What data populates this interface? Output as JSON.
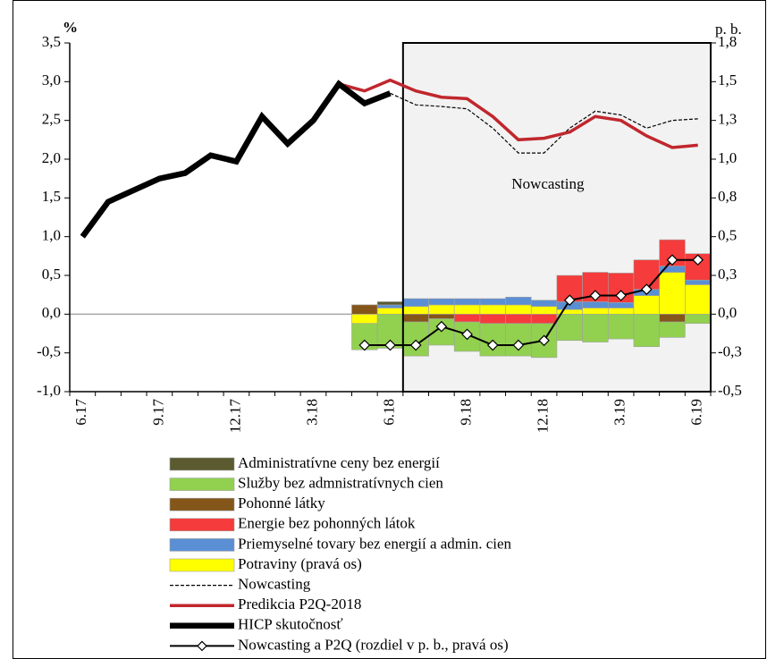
{
  "chart_data": {
    "type": "combo",
    "ylabel": "%",
    "y2label": "p. b.",
    "annotation": "Nowcasting",
    "categories": [
      "6.17",
      null,
      null,
      "9.17",
      null,
      null,
      "12.17",
      null,
      null,
      "3.18",
      null,
      null,
      "6.18",
      null,
      null,
      "9.18",
      null,
      null,
      "12.18",
      null,
      null,
      "3.19",
      null,
      null,
      "6.19"
    ],
    "ylim": [
      -1.0,
      3.5
    ],
    "yticks": [
      {
        "value": 3.5,
        "label": "3,5"
      },
      {
        "value": 3.0,
        "label": "3,0"
      },
      {
        "value": 2.5,
        "label": "2,5"
      },
      {
        "value": 2.0,
        "label": "2,0"
      },
      {
        "value": 1.5,
        "label": "1,5"
      },
      {
        "value": 1.0,
        "label": "1,0"
      },
      {
        "value": 0.5,
        "label": "0,5"
      },
      {
        "value": 0.0,
        "label": "0,0"
      },
      {
        "value": -0.5,
        "label": "-0,5"
      },
      {
        "value": -1.0,
        "label": "-1,0"
      }
    ],
    "y2lim": [
      -0.5,
      1.75
    ],
    "y2ticks": [
      {
        "value": 1.75,
        "label": "1,8"
      },
      {
        "value": 1.5,
        "label": "1,5"
      },
      {
        "value": 1.25,
        "label": "1,3"
      },
      {
        "value": 1.0,
        "label": "1,0"
      },
      {
        "value": 0.75,
        "label": "0,8"
      },
      {
        "value": 0.5,
        "label": "0,5"
      },
      {
        "value": 0.25,
        "label": "0,3"
      },
      {
        "value": 0.0,
        "label": "0,0"
      },
      {
        "value": -0.25,
        "label": "-0,3"
      },
      {
        "value": -0.5,
        "label": "-0,5"
      }
    ],
    "series": [
      {
        "name": "Administratívne ceny bez energií",
        "type": "bar",
        "axis": "y2",
        "color": "#5b5a30",
        "values": [
          null,
          null,
          null,
          null,
          null,
          null,
          null,
          null,
          null,
          null,
          null,
          0,
          0.02,
          0,
          0,
          0,
          0,
          0,
          0,
          0,
          0,
          0,
          0,
          0,
          0
        ]
      },
      {
        "name": "Služby bez admnistratívnych cien",
        "type": "bar",
        "axis": "y2",
        "color": "#92d050",
        "values": [
          null,
          null,
          null,
          null,
          null,
          null,
          null,
          null,
          null,
          null,
          null,
          -0.17,
          -0.22,
          -0.22,
          -0.17,
          -0.19,
          -0.21,
          -0.21,
          -0.22,
          -0.17,
          -0.18,
          -0.16,
          -0.21,
          -0.1,
          -0.06
        ]
      },
      {
        "name": "Pohonné látky",
        "type": "bar",
        "axis": "y2",
        "color": "#84561a",
        "values": [
          null,
          null,
          null,
          null,
          null,
          null,
          null,
          null,
          null,
          null,
          null,
          0.06,
          0,
          -0.05,
          -0.03,
          0,
          0,
          0,
          0,
          0,
          0,
          0,
          0,
          -0.05,
          0
        ]
      },
      {
        "name": "Energie bez pohonných látok",
        "type": "bar",
        "axis": "y2",
        "color": "#f53b3b",
        "values": [
          null,
          null,
          null,
          null,
          null,
          null,
          null,
          null,
          null,
          null,
          null,
          0,
          0,
          0,
          0,
          -0.05,
          -0.06,
          -0.06,
          -0.06,
          0.17,
          0.19,
          0.19,
          0.19,
          0.17,
          0.17
        ]
      },
      {
        "name": "Priemyselné tovary bez energií a admin. cien",
        "type": "bar",
        "axis": "y2",
        "color": "#5b8fd4",
        "values": [
          null,
          null,
          null,
          null,
          null,
          null,
          null,
          null,
          null,
          null,
          null,
          0,
          0.02,
          0.05,
          0.04,
          0.04,
          0.04,
          0.05,
          0.04,
          0.05,
          0.04,
          0.035,
          0.04,
          0.04,
          0.03
        ]
      },
      {
        "name": "Potraviny (pravá os)",
        "type": "bar",
        "axis": "y2",
        "color": "#ffff00",
        "values": [
          null,
          null,
          null,
          null,
          null,
          null,
          null,
          null,
          null,
          null,
          null,
          -0.06,
          0.04,
          0.05,
          0.06,
          0.06,
          0.06,
          0.06,
          0.05,
          0.03,
          0.04,
          0.04,
          0.12,
          0.27,
          0.19
        ]
      },
      {
        "name": "Nowcasting",
        "type": "line",
        "style": "dashed",
        "color": "#000000",
        "values": [
          null,
          null,
          null,
          null,
          null,
          null,
          null,
          null,
          null,
          null,
          null,
          null,
          2.85,
          2.7,
          2.68,
          2.65,
          2.4,
          2.08,
          2.08,
          2.4,
          2.62,
          2.57,
          2.4,
          2.5,
          2.52
        ]
      },
      {
        "name": "Predikcia P2Q-2018",
        "type": "line",
        "style": "medium",
        "color": "#c0272d",
        "values": [
          null,
          null,
          null,
          null,
          null,
          null,
          null,
          null,
          null,
          null,
          2.97,
          2.88,
          3.02,
          2.88,
          2.8,
          2.78,
          2.55,
          2.25,
          2.27,
          2.35,
          2.55,
          2.5,
          2.3,
          2.15,
          2.18
        ]
      },
      {
        "name": "HICP skutočnosť",
        "type": "line",
        "style": "thick",
        "color": "#000000",
        "values": [
          1.0,
          1.45,
          1.6,
          1.75,
          1.82,
          2.05,
          1.97,
          2.55,
          2.2,
          2.5,
          2.97,
          2.72,
          2.85,
          null,
          null,
          null,
          null,
          null,
          null,
          null,
          null,
          null,
          null,
          null,
          null
        ]
      },
      {
        "name": "Nowcasting a P2Q (rozdiel v p. b., pravá os)",
        "type": "line",
        "style": "markers",
        "axis": "y2",
        "color": "#000000",
        "values": [
          null,
          null,
          null,
          null,
          null,
          null,
          null,
          null,
          null,
          null,
          null,
          -0.2,
          -0.2,
          -0.2,
          -0.08,
          -0.13,
          -0.2,
          -0.2,
          -0.17,
          0.09,
          0.12,
          0.12,
          0.16,
          0.35,
          0.35
        ]
      }
    ]
  }
}
